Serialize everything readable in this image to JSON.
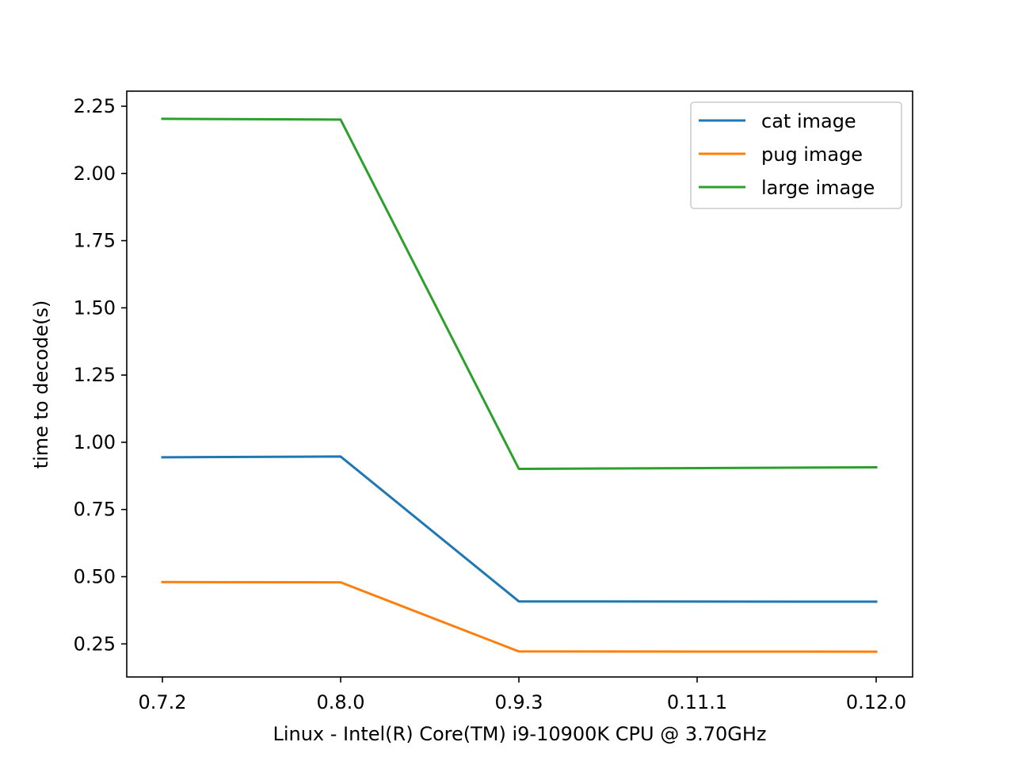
{
  "chart_data": {
    "type": "line",
    "categories": [
      "0.7.2",
      "0.8.0",
      "0.9.3",
      "0.11.1",
      "0.12.0"
    ],
    "series": [
      {
        "name": "cat image",
        "color": "#1f77b4",
        "values": [
          0.944,
          0.947,
          0.408,
          null,
          0.407
        ]
      },
      {
        "name": "pug image",
        "color": "#ff7f0e",
        "values": [
          0.48,
          0.479,
          0.222,
          null,
          0.221
        ]
      },
      {
        "name": "large image",
        "color": "#2ca02c",
        "values": [
          2.203,
          2.2,
          0.901,
          null,
          0.907
        ]
      }
    ],
    "title": "",
    "xlabel": "Linux - Intel(R) Core(TM) i9-10900K CPU @ 3.70GHz",
    "ylabel": "time to decode(s)",
    "ylim": [
      0.127,
      2.306
    ],
    "yticks": [
      "0.25",
      "0.50",
      "0.75",
      "1.00",
      "1.25",
      "1.50",
      "1.75",
      "2.00",
      "2.25"
    ],
    "grid": false,
    "legend_position": "upper-right"
  }
}
